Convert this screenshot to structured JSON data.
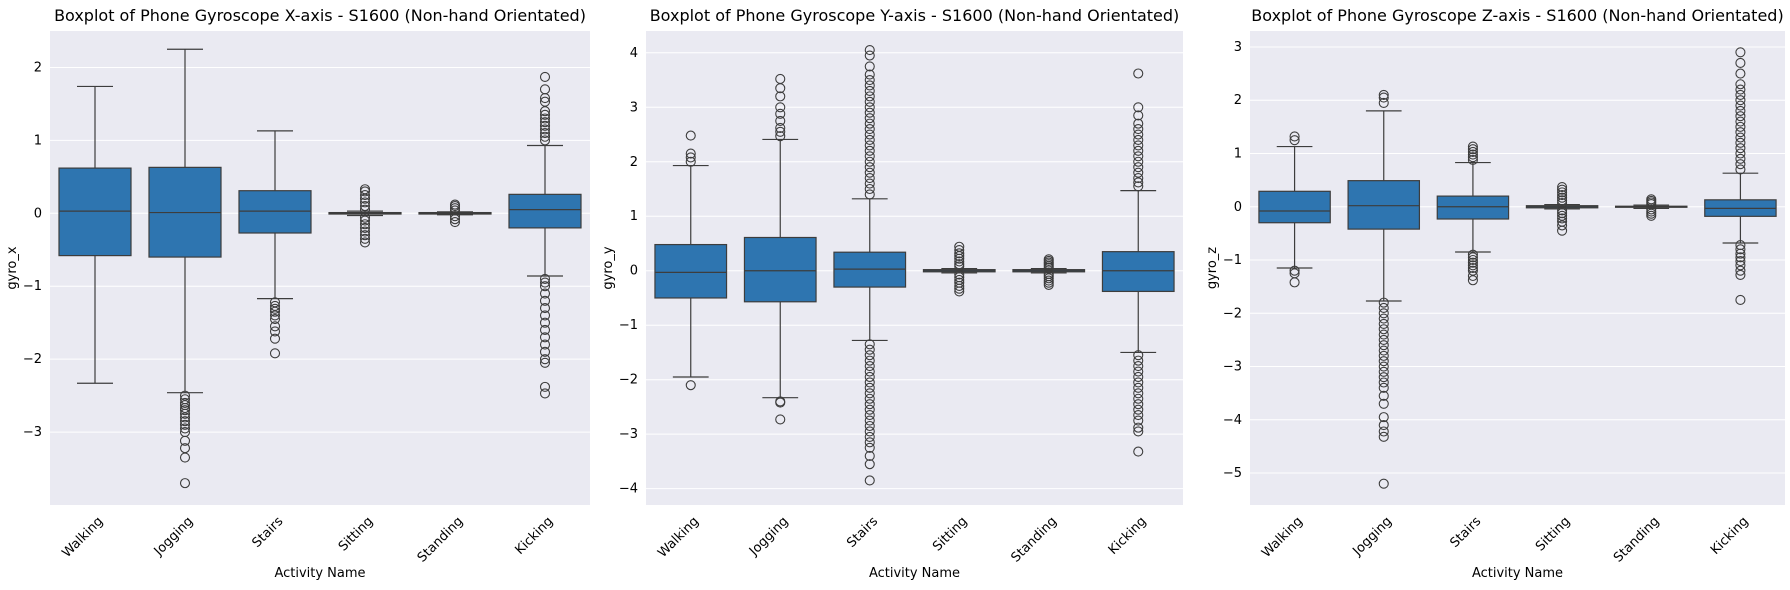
{
  "chart_data": [
    {
      "type": "box",
      "title": "Boxplot of Phone Gyroscope X-axis - S1600 (Non-hand Orientated)",
      "xlabel": "Activity Name",
      "ylabel": "gyro_x",
      "categories": [
        "Walking",
        "Jogging",
        "Stairs",
        "Sitting",
        "Standing",
        "Kicking"
      ],
      "ylim": [
        -4.0,
        2.5
      ],
      "yticks": [
        2,
        1,
        0,
        -1,
        -2,
        -3
      ],
      "ytick_labels": [
        "2",
        "1",
        "0",
        "−1",
        "−2",
        "−3"
      ],
      "grid": true,
      "box_color": "#2e75b0",
      "boxes": [
        {
          "whislo": -2.33,
          "q1": -0.58,
          "med": 0.03,
          "q3": 0.62,
          "whishi": 1.74,
          "fliers": []
        },
        {
          "whislo": -2.46,
          "q1": -0.6,
          "med": 0.01,
          "q3": 0.63,
          "whishi": 2.25,
          "fliers": [
            -2.5,
            -2.55,
            -2.6,
            -2.63,
            -2.67,
            -2.7,
            -2.75,
            -2.8,
            -2.85,
            -2.9,
            -2.95,
            -3.0,
            -3.12,
            -3.22,
            -3.35,
            -3.7
          ]
        },
        {
          "whislo": -1.17,
          "q1": -0.27,
          "med": 0.03,
          "q3": 0.31,
          "whishi": 1.13,
          "fliers": [
            -1.22,
            -1.27,
            -1.31,
            -1.35,
            -1.4,
            -1.45,
            -1.55,
            -1.62,
            -1.72,
            -1.92
          ]
        },
        {
          "whislo": -0.03,
          "q1": -0.01,
          "med": 0.0,
          "q3": 0.01,
          "whishi": 0.03,
          "fliers": [
            0.05,
            0.1,
            0.15,
            0.2,
            0.25,
            0.3,
            0.33,
            -0.06,
            -0.1,
            -0.15,
            -0.2,
            -0.25,
            -0.3,
            -0.35,
            -0.4
          ]
        },
        {
          "whislo": -0.02,
          "q1": -0.01,
          "med": 0.0,
          "q3": 0.01,
          "whishi": 0.02,
          "fliers": [
            0.04,
            0.07,
            0.1,
            0.12,
            -0.04,
            -0.08,
            -0.12
          ]
        },
        {
          "whislo": -0.86,
          "q1": -0.2,
          "med": 0.05,
          "q3": 0.26,
          "whishi": 0.93,
          "fliers": [
            1.0,
            1.05,
            1.1,
            1.15,
            1.2,
            1.25,
            1.3,
            1.35,
            1.4,
            1.53,
            1.58,
            1.7,
            1.87,
            -0.9,
            -0.95,
            -1.0,
            -1.1,
            -1.2,
            -1.3,
            -1.4,
            -1.5,
            -1.6,
            -1.7,
            -1.8,
            -1.9,
            -2.0,
            -2.05,
            -2.38,
            -2.47
          ]
        }
      ]
    },
    {
      "type": "box",
      "title": "Boxplot of Phone Gyroscope Y-axis - S1600 (Non-hand Orientated)",
      "xlabel": "Activity Name",
      "ylabel": "gyro_y",
      "categories": [
        "Walking",
        "Jogging",
        "Stairs",
        "Sitting",
        "Standing",
        "Kicking"
      ],
      "ylim": [
        -4.3,
        4.4
      ],
      "yticks": [
        4,
        3,
        2,
        1,
        0,
        -1,
        -2,
        -3,
        -4
      ],
      "ytick_labels": [
        "4",
        "3",
        "2",
        "1",
        "0",
        "−1",
        "−2",
        "−3",
        "−4"
      ],
      "grid": true,
      "box_color": "#2e75b0",
      "boxes": [
        {
          "whislo": -1.95,
          "q1": -0.5,
          "med": -0.03,
          "q3": 0.48,
          "whishi": 1.93,
          "fliers": [
            2.0,
            2.08,
            2.15,
            2.48,
            -2.1
          ]
        },
        {
          "whislo": -2.33,
          "q1": -0.57,
          "med": 0.0,
          "q3": 0.61,
          "whishi": 2.41,
          "fliers": [
            2.47,
            2.55,
            2.62,
            2.75,
            2.88,
            3.0,
            3.2,
            3.35,
            3.52,
            -2.4,
            -2.42,
            -2.73
          ]
        },
        {
          "whislo": -1.28,
          "q1": -0.3,
          "med": 0.03,
          "q3": 0.34,
          "whishi": 1.32,
          "fliers": [
            1.4,
            1.5,
            1.6,
            1.7,
            1.8,
            1.9,
            2.0,
            2.1,
            2.2,
            2.3,
            2.4,
            2.5,
            2.6,
            2.7,
            2.8,
            2.9,
            3.0,
            3.1,
            3.2,
            3.3,
            3.4,
            3.5,
            3.6,
            3.75,
            3.95,
            4.05,
            -1.35,
            -1.45,
            -1.55,
            -1.65,
            -1.75,
            -1.85,
            -1.95,
            -2.05,
            -2.15,
            -2.25,
            -2.35,
            -2.45,
            -2.55,
            -2.65,
            -2.75,
            -2.85,
            -2.95,
            -3.05,
            -3.15,
            -3.25,
            -3.4,
            -3.55,
            -3.85
          ]
        },
        {
          "whislo": -0.04,
          "q1": -0.02,
          "med": 0.0,
          "q3": 0.02,
          "whishi": 0.04,
          "fliers": [
            0.08,
            0.12,
            0.17,
            0.22,
            0.27,
            0.32,
            0.38,
            0.44,
            -0.07,
            -0.12,
            -0.17,
            -0.22,
            -0.28,
            -0.33,
            -0.38
          ]
        },
        {
          "whislo": -0.04,
          "q1": -0.02,
          "med": 0.0,
          "q3": 0.02,
          "whishi": 0.04,
          "fliers": [
            0.06,
            0.09,
            0.12,
            0.15,
            0.18,
            0.21,
            -0.06,
            -0.1,
            -0.14,
            -0.18,
            -0.22,
            -0.26
          ]
        },
        {
          "whislo": -1.5,
          "q1": -0.38,
          "med": 0.0,
          "q3": 0.35,
          "whishi": 1.47,
          "fliers": [
            1.55,
            1.62,
            1.7,
            1.8,
            1.9,
            2.0,
            2.1,
            2.2,
            2.3,
            2.4,
            2.5,
            2.6,
            2.7,
            2.85,
            3.0,
            3.62,
            -1.55,
            -1.65,
            -1.75,
            -1.85,
            -1.95,
            -2.05,
            -2.15,
            -2.25,
            -2.35,
            -2.45,
            -2.55,
            -2.65,
            -2.75,
            -2.88,
            -2.95,
            -3.32
          ]
        }
      ]
    },
    {
      "type": "box",
      "title": "Boxplot of Phone Gyroscope Z-axis - S1600 (Non-hand Orientated)",
      "xlabel": "Activity Name",
      "ylabel": "gyro_z",
      "categories": [
        "Walking",
        "Jogging",
        "Stairs",
        "Sitting",
        "Standing",
        "Kicking"
      ],
      "ylim": [
        -5.6,
        3.3
      ],
      "yticks": [
        3,
        2,
        1,
        0,
        -1,
        -2,
        -3,
        -4,
        -5
      ],
      "ytick_labels": [
        "3",
        "2",
        "1",
        "0",
        "−1",
        "−2",
        "−3",
        "−4",
        "−5"
      ],
      "grid": true,
      "box_color": "#2e75b0",
      "boxes": [
        {
          "whislo": -1.15,
          "q1": -0.3,
          "med": -0.08,
          "q3": 0.29,
          "whishi": 1.13,
          "fliers": [
            1.25,
            1.32,
            -1.2,
            -1.25,
            -1.42
          ]
        },
        {
          "whislo": -1.77,
          "q1": -0.42,
          "med": 0.02,
          "q3": 0.49,
          "whishi": 1.8,
          "fliers": [
            1.95,
            2.05,
            2.1,
            -1.8,
            -1.9,
            -2.0,
            -2.1,
            -2.2,
            -2.3,
            -2.4,
            -2.5,
            -2.6,
            -2.7,
            -2.8,
            -2.9,
            -3.0,
            -3.1,
            -3.2,
            -3.3,
            -3.4,
            -3.55,
            -3.7,
            -3.95,
            -4.1,
            -4.22,
            -4.32,
            -5.2
          ]
        },
        {
          "whislo": -0.85,
          "q1": -0.23,
          "med": 0.0,
          "q3": 0.2,
          "whishi": 0.83,
          "fliers": [
            0.88,
            0.93,
            0.98,
            1.03,
            1.08,
            1.13,
            -0.9,
            -0.95,
            -1.0,
            -1.05,
            -1.1,
            -1.15,
            -1.2,
            -1.3,
            -1.38
          ]
        },
        {
          "whislo": -0.04,
          "q1": -0.02,
          "med": 0.0,
          "q3": 0.02,
          "whishi": 0.04,
          "fliers": [
            0.07,
            0.12,
            0.17,
            0.22,
            0.27,
            0.32,
            0.37,
            -0.07,
            -0.12,
            -0.17,
            -0.22,
            -0.28,
            -0.35,
            -0.45
          ]
        },
        {
          "whislo": -0.03,
          "q1": -0.01,
          "med": 0.0,
          "q3": 0.01,
          "whishi": 0.03,
          "fliers": [
            0.05,
            0.08,
            0.11,
            0.14,
            -0.05,
            -0.09,
            -0.13,
            -0.17
          ]
        },
        {
          "whislo": -0.68,
          "q1": -0.18,
          "med": -0.03,
          "q3": 0.13,
          "whishi": 0.63,
          "fliers": [
            0.7,
            0.8,
            0.9,
            1.0,
            1.1,
            1.2,
            1.3,
            1.4,
            1.5,
            1.6,
            1.7,
            1.8,
            1.9,
            2.0,
            2.1,
            2.2,
            2.3,
            2.5,
            2.7,
            2.9,
            -0.72,
            -0.8,
            -0.88,
            -0.95,
            -1.02,
            -1.1,
            -1.2,
            -1.28,
            -1.75
          ]
        }
      ]
    }
  ]
}
